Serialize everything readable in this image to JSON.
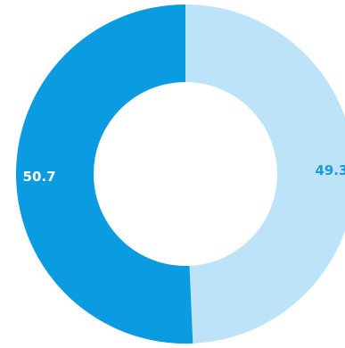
{
  "chart_data": {
    "type": "donut",
    "values": [
      49.3,
      50.7
    ],
    "colors": [
      "#bde3f8",
      "#0a9be0"
    ],
    "label_colors": [
      "#1a9be0",
      "#ffffff"
    ]
  }
}
